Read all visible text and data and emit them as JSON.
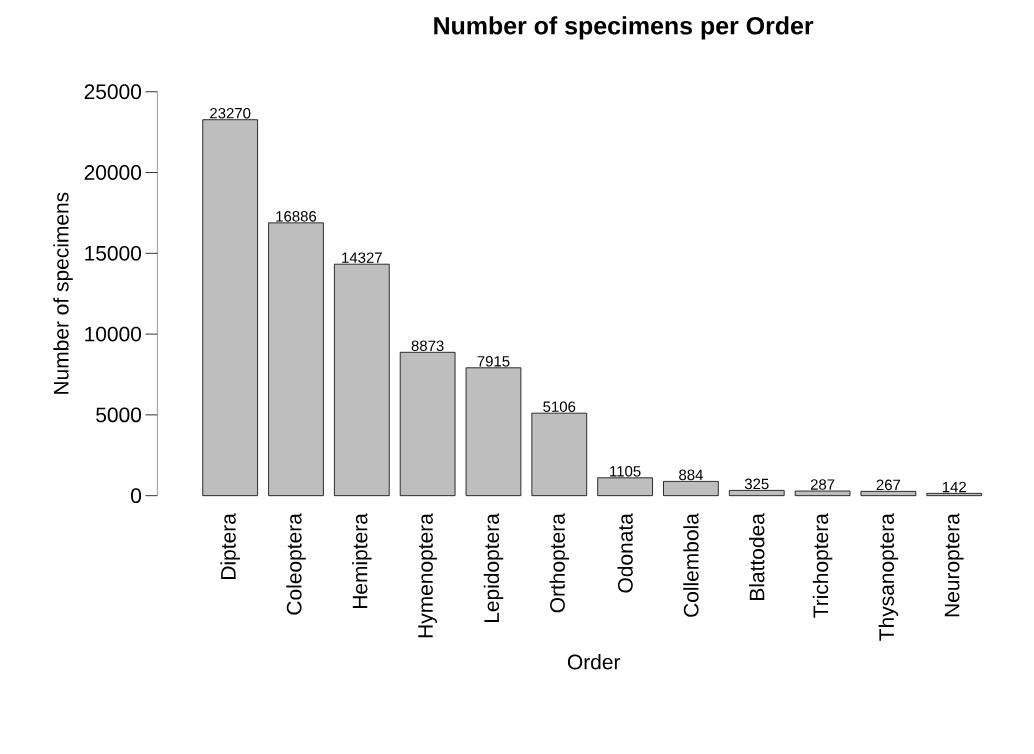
{
  "chart_data": {
    "type": "bar",
    "title": "Number of specimens per Order",
    "xlabel": "Order",
    "ylabel": "Number of specimens",
    "categories": [
      "Diptera",
      "Coleoptera",
      "Hemiptera",
      "Hymenoptera",
      "Lepidoptera",
      "Orthoptera",
      "Odonata",
      "Collembola",
      "Blattodea",
      "Trichoptera",
      "Thysanoptera",
      "Neuroptera"
    ],
    "values": [
      23270,
      16886,
      14327,
      8873,
      7915,
      5106,
      1105,
      884,
      325,
      287,
      267,
      142
    ],
    "color": "#bebebe",
    "ylim": [
      0,
      25000
    ],
    "yticks": [
      0,
      5000,
      10000,
      15000,
      20000,
      25000
    ],
    "data_labels": true,
    "grid": false
  }
}
